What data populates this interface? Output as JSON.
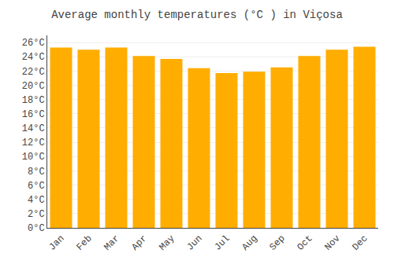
{
  "chart_data": {
    "type": "bar",
    "title": "Average monthly temperatures (°C ) in Viçosa",
    "categories": [
      "Jan",
      "Feb",
      "Mar",
      "Apr",
      "May",
      "Jun",
      "Jul",
      "Aug",
      "Sep",
      "Oct",
      "Nov",
      "Dec"
    ],
    "values": [
      25.3,
      25.0,
      25.3,
      24.1,
      23.7,
      22.4,
      21.7,
      21.9,
      22.5,
      24.1,
      25.0,
      25.4
    ],
    "color": "#FFAD00",
    "ylim": [
      0,
      27
    ],
    "yticks": [
      {
        "value": 0,
        "label": "0°C"
      },
      {
        "value": 2,
        "label": "2°C"
      },
      {
        "value": 4,
        "label": "4°C"
      },
      {
        "value": 6,
        "label": "6°C"
      },
      {
        "value": 8,
        "label": "8°C"
      },
      {
        "value": 10,
        "label": "10°C"
      },
      {
        "value": 12,
        "label": "12°C"
      },
      {
        "value": 14,
        "label": "14°C"
      },
      {
        "value": 16,
        "label": "16°C"
      },
      {
        "value": 18,
        "label": "18°C"
      },
      {
        "value": 20,
        "label": "20°C"
      },
      {
        "value": 22,
        "label": "22°C"
      },
      {
        "value": 24,
        "label": "24°C"
      },
      {
        "value": 26,
        "label": "26°C"
      }
    ],
    "grid": true
  }
}
